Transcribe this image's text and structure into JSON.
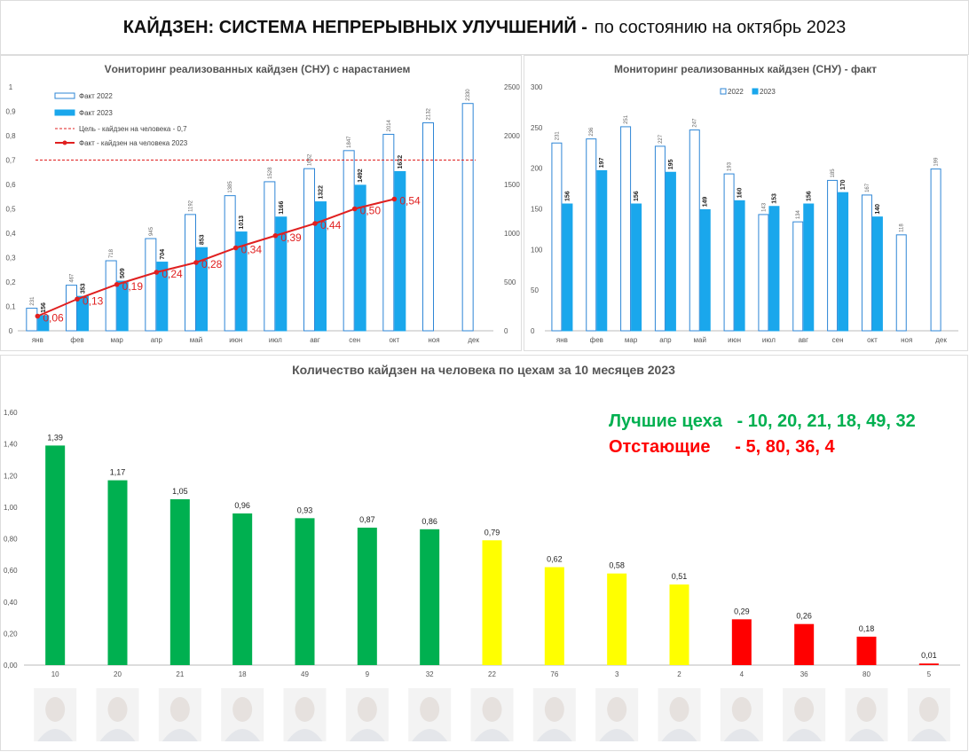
{
  "header": {
    "title": "КАЙДЗЕН: СИСТЕМА НЕПРЕРЫВНЫХ УЛУЧШЕНИЙ  -",
    "subtitle": "по состоянию на октябрь 2023"
  },
  "chart_data": [
    {
      "type": "combo",
      "title": "Vониторинг реализованных кайдзен (СНУ) с нарастанием",
      "categories": [
        "янв",
        "фев",
        "мар",
        "апр",
        "май",
        "июн",
        "июл",
        "авг",
        "сен",
        "окт",
        "ноя",
        "дек"
      ],
      "series": [
        {
          "name": "Факт 2022",
          "type": "bar",
          "style": "outline",
          "axis": "y2",
          "color": "#2e86d6",
          "values": [
            231,
            467,
            718,
            945,
            1192,
            1385,
            1528,
            1662,
            1847,
            2014,
            2132,
            2330
          ]
        },
        {
          "name": "Факт 2023",
          "type": "bar",
          "style": "solid",
          "axis": "y2",
          "color": "#1aa7ec",
          "values": [
            156,
            353,
            509,
            704,
            853,
            1013,
            1166,
            1322,
            1492,
            1632,
            null,
            null
          ]
        },
        {
          "name": "Факт - кайдзен на человека 2023",
          "type": "line",
          "color": "#e02020",
          "values": [
            0.06,
            0.13,
            0.19,
            0.24,
            0.28,
            0.34,
            0.39,
            0.44,
            0.5,
            0.54,
            null,
            null
          ],
          "value_labels": [
            "0,06",
            "0,13",
            "0,19",
            "0,24",
            "0,28",
            "0,34",
            "0,39",
            "0,44",
            "0,50",
            "0,54",
            null,
            null
          ]
        }
      ],
      "target": {
        "name": "Цель - кайдзен на человека - 0,7",
        "value": 0.7,
        "color": "#e02020"
      },
      "ylim": [
        0,
        1
      ],
      "yticks": [
        0,
        {
          "value": 0.1,
          "label": "0,1"
        },
        {
          "value": 0.2,
          "label": "0,2"
        },
        {
          "value": 0.3,
          "label": "0,3"
        },
        {
          "value": 0.4,
          "label": "0,4"
        },
        {
          "value": 0.5,
          "label": "0,5"
        },
        {
          "value": 0.6,
          "label": "0,6"
        },
        {
          "value": 0.7,
          "label": "0,7"
        },
        {
          "value": 0.8,
          "label": "0,8"
        },
        {
          "value": 0.9,
          "label": "0,9"
        },
        1
      ],
      "y2lim": [
        0,
        2500
      ],
      "y2ticks": [
        0,
        500,
        1000,
        1500,
        2000,
        2500
      ],
      "grid": false
    },
    {
      "type": "bar",
      "title": "Мониторинг реализованных кайдзен (СНУ) - факт",
      "categories": [
        "янв",
        "фев",
        "мар",
        "апр",
        "май",
        "июн",
        "июл",
        "авг",
        "сен",
        "окт",
        "ноя",
        "дек"
      ],
      "series": [
        {
          "name": "2022",
          "style": "outline",
          "color": "#2e86d6",
          "values": [
            231,
            236,
            251,
            227,
            247,
            193,
            143,
            134,
            185,
            167,
            118,
            199
          ]
        },
        {
          "name": "2023",
          "style": "solid",
          "color": "#1aa7ec",
          "values": [
            156,
            197,
            156,
            195,
            149,
            160,
            153,
            156,
            170,
            140,
            null,
            null
          ]
        }
      ],
      "ylim": [
        0,
        300
      ],
      "yticks": [
        0,
        50,
        100,
        150,
        200,
        250,
        300
      ],
      "grid": false
    },
    {
      "type": "bar",
      "title": "Количество кайдзен на человека по цехам  за 10 месяцев 2023",
      "categories": [
        "10",
        "20",
        "21",
        "18",
        "49",
        "9",
        "32",
        "22",
        "76",
        "3",
        "2",
        "4",
        "36",
        "80",
        "5"
      ],
      "values": [
        1.39,
        1.17,
        1.05,
        0.96,
        0.93,
        0.87,
        0.86,
        0.79,
        0.62,
        0.58,
        0.51,
        0.29,
        0.26,
        0.18,
        0.01
      ],
      "value_labels": [
        "1,39",
        "1,17",
        "1,05",
        "0,96",
        "0,93",
        "0,87",
        "0,86",
        "0,79",
        "0,62",
        "0,58",
        "0,51",
        "0,29",
        "0,26",
        "0,18",
        "0,01"
      ],
      "colors": [
        "#00b050",
        "#00b050",
        "#00b050",
        "#00b050",
        "#00b050",
        "#00b050",
        "#00b050",
        "#ffff00",
        "#ffff00",
        "#ffff00",
        "#ffff00",
        "#ff0000",
        "#ff0000",
        "#ff0000",
        "#ff0000"
      ],
      "ylim": [
        0,
        1.6
      ],
      "yticks": [
        {
          "value": 0,
          "label": "0,00"
        },
        {
          "value": 0.2,
          "label": "0,20"
        },
        {
          "value": 0.4,
          "label": "0,40"
        },
        {
          "value": 0.6,
          "label": "0,60"
        },
        {
          "value": 0.8,
          "label": "0,80"
        },
        {
          "value": 1,
          "label": "1,00"
        },
        {
          "value": 1.2,
          "label": "1,20"
        },
        {
          "value": 1.4,
          "label": "1,40"
        },
        {
          "value": 1.6,
          "label": "1,60"
        }
      ],
      "grid": false,
      "annotations": [
        {
          "text": "Лучшие цеха   - 10, 20, 21, 18, 49, 32",
          "color": "#00b050"
        },
        {
          "text": "Отстающие     - 5, 80, 36, 4",
          "color": "#ff0000"
        }
      ]
    }
  ]
}
